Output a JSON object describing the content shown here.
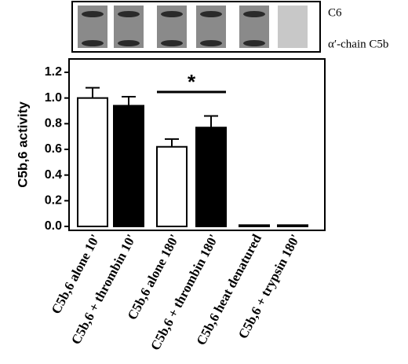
{
  "gel": {
    "labels": [
      "C6",
      "α′-chain C5b"
    ]
  },
  "chart_data": {
    "type": "bar",
    "ylabel": "C5b,6 activity",
    "categories": [
      "C5b,6 alone 10'",
      "C5b,6 + thrombin 10'",
      "C5b,6 alone 180'",
      "C5b,6 + thrombin 180'",
      "C5b,6 heat denatured",
      "C5b,6 + trypsin 180'"
    ],
    "values": [
      1.0,
      0.94,
      0.62,
      0.77,
      0.01,
      0.01
    ],
    "errors": [
      0.08,
      0.07,
      0.06,
      0.09,
      0,
      0
    ],
    "colors": [
      "#ffffff",
      "#000000",
      "#ffffff",
      "#000000",
      "#ffffff",
      "#000000"
    ],
    "ylim": [
      0,
      1.3
    ],
    "yticks": [
      {
        "value": 0,
        "label": "0.0"
      },
      0.2,
      0.4,
      0.6,
      0.8,
      {
        "value": 1,
        "label": "1.0"
      },
      1.2
    ],
    "annotation": "*"
  }
}
